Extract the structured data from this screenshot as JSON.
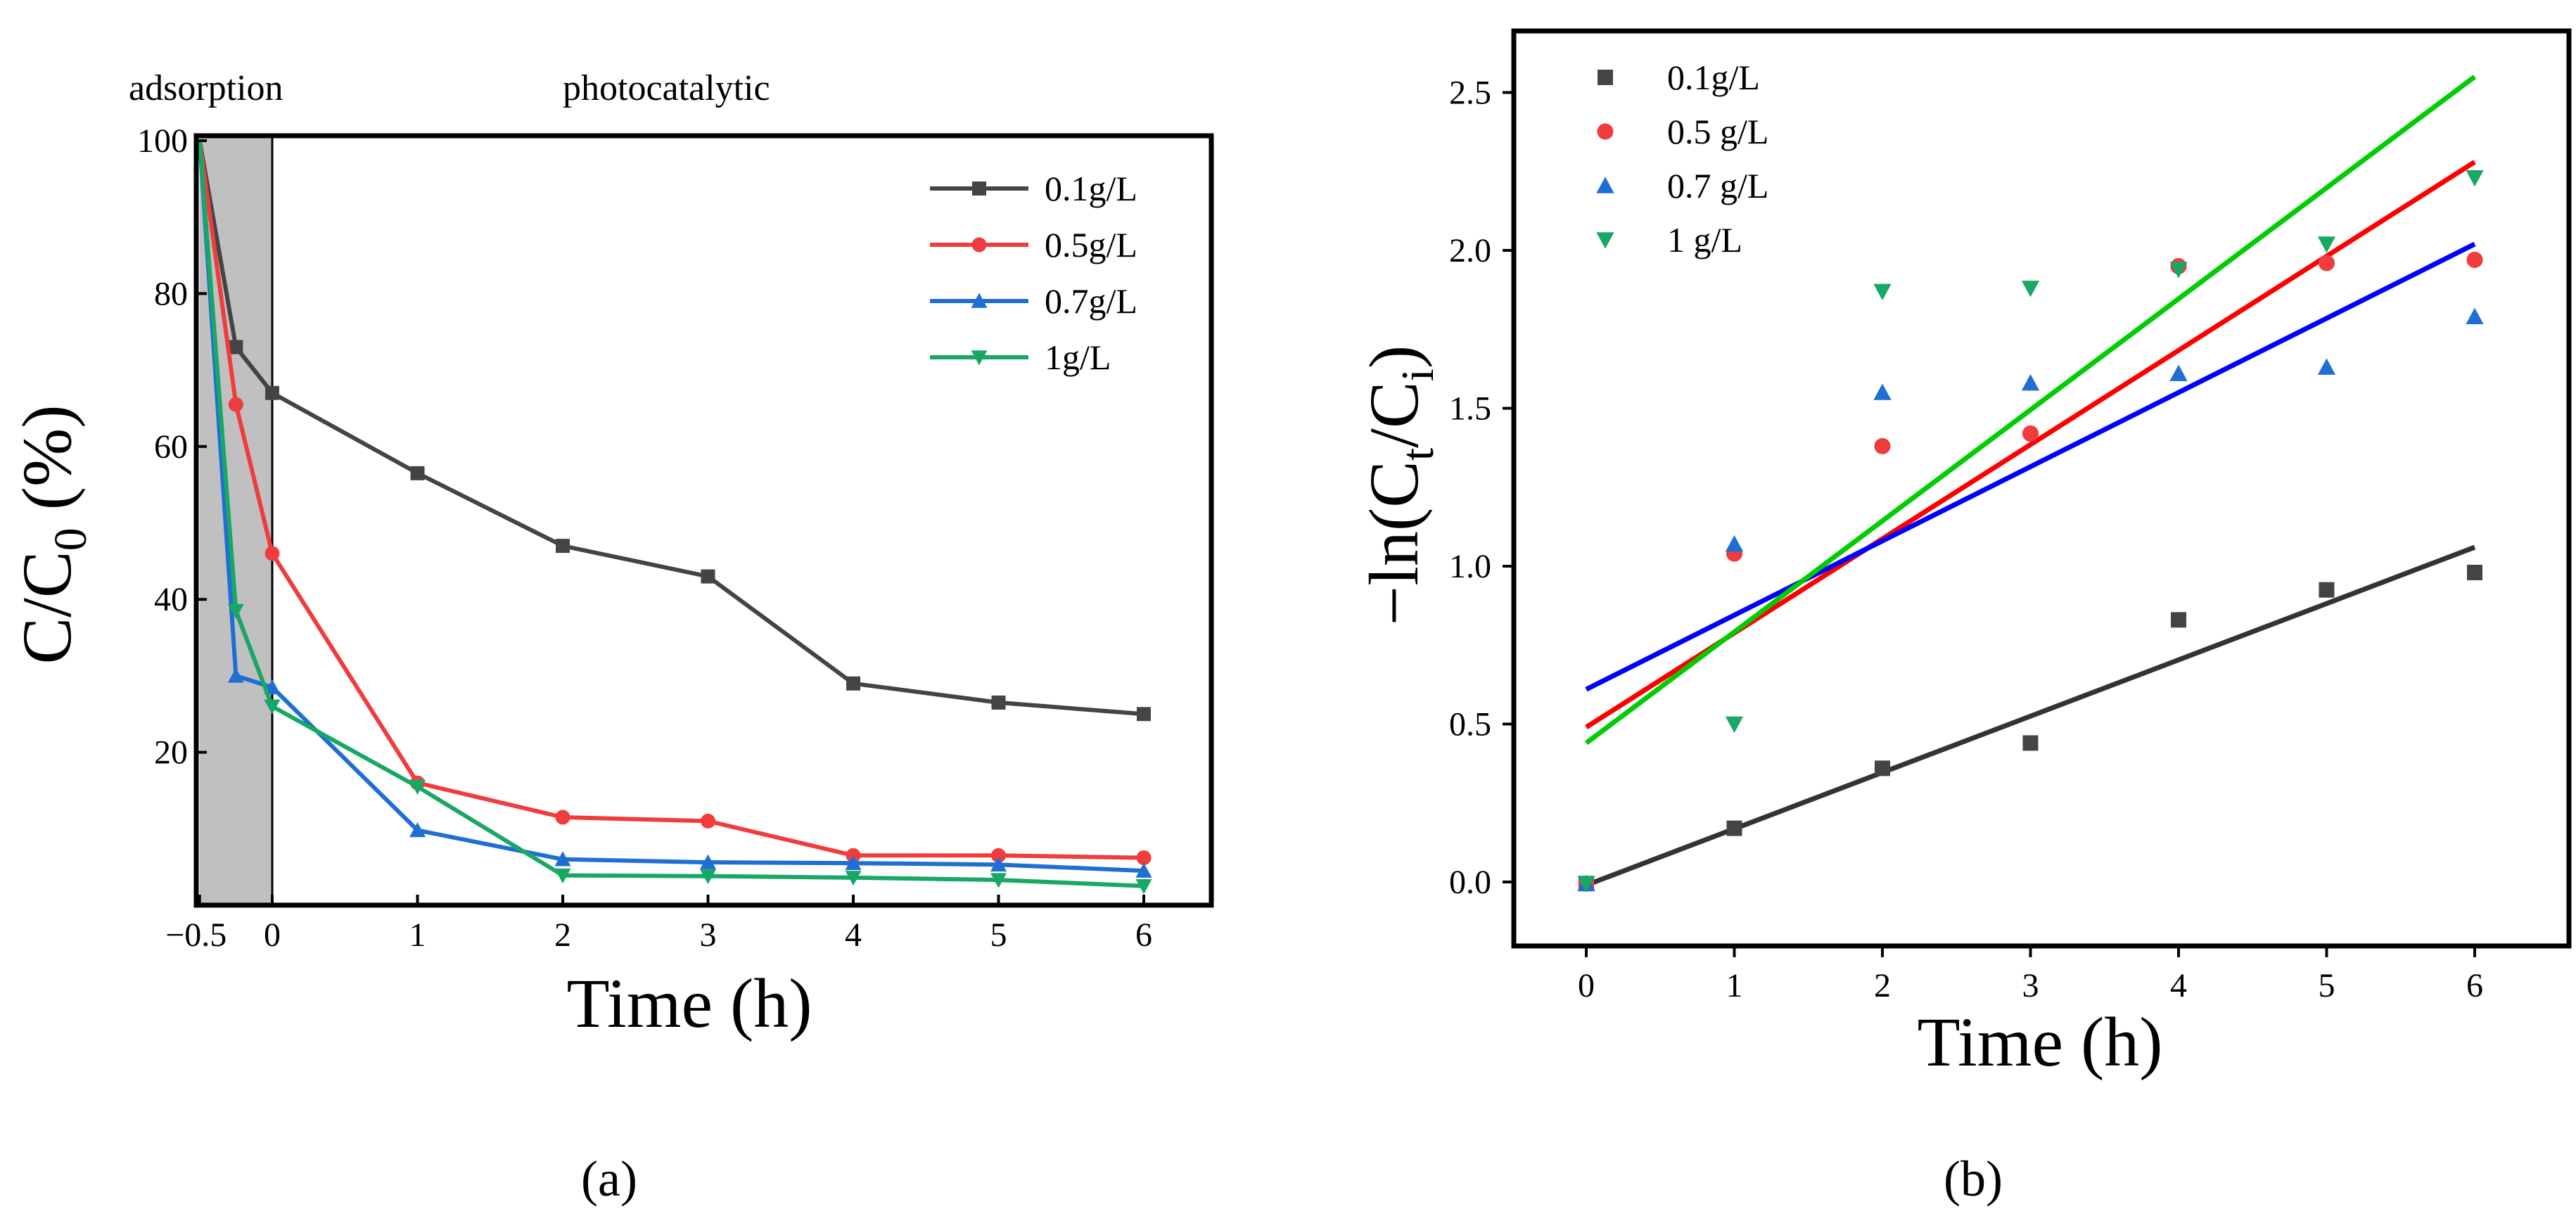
{
  "chart_data": [
    {
      "panel": "a",
      "type": "line",
      "caption": "(a)",
      "annotations": [
        "adsorption",
        "photocatalytic"
      ],
      "title": "",
      "xlabel": "Time (h)",
      "ylabel": "C/C0 (%)",
      "ylabel_main": "C/C",
      "ylabel_sub": "0",
      "ylabel_tail": " (%)",
      "xlim": [
        -0.5,
        6.5
      ],
      "ylim": [
        0,
        100
      ],
      "xticks": [
        -0.5,
        0,
        1,
        2,
        3,
        4,
        5,
        6
      ],
      "xtick_labels": [
        "−0.5",
        "0",
        "1",
        "2",
        "3",
        "4",
        "5",
        "6"
      ],
      "yticks": [
        20,
        40,
        60,
        80,
        100
      ],
      "ytick_labels": [
        "20",
        "40",
        "60",
        "80",
        "100"
      ],
      "shaded_region": {
        "x_from": -0.5,
        "x_to": 0,
        "label": "adsorption",
        "color": "#c0c0c0"
      },
      "grid": false,
      "legend_position": "top-right",
      "series": [
        {
          "name": "0.1g/L",
          "color": "#444444",
          "marker": "square",
          "x": [
            -0.5,
            -0.25,
            0,
            1,
            2,
            3,
            4,
            5,
            6
          ],
          "y": [
            100,
            73,
            67,
            56.5,
            47,
            43,
            29,
            26.5,
            25
          ]
        },
        {
          "name": "0.5g/L",
          "color": "#f03c3c",
          "marker": "circle",
          "x": [
            -0.5,
            -0.25,
            0,
            1,
            2,
            3,
            4,
            5,
            6
          ],
          "y": [
            100,
            65.5,
            46,
            16,
            11.5,
            11,
            6.5,
            6.5,
            6.2
          ]
        },
        {
          "name": "0.7g/L",
          "color": "#1f6ed4",
          "marker": "triangle-up",
          "x": [
            -0.5,
            -0.25,
            0,
            1,
            2,
            3,
            4,
            5,
            6
          ],
          "y": [
            100,
            30,
            28.5,
            9.8,
            6,
            5.6,
            5.5,
            5.3,
            4.5
          ]
        },
        {
          "name": "1g/L",
          "color": "#17a865",
          "marker": "triangle-down",
          "x": [
            -0.5,
            -0.25,
            0,
            1,
            2,
            3,
            4,
            5,
            6
          ],
          "y": [
            100,
            38.5,
            26,
            15.5,
            3.9,
            3.8,
            3.6,
            3.3,
            2.5
          ]
        }
      ]
    },
    {
      "panel": "b",
      "type": "scatter",
      "caption": "(b)",
      "title": "",
      "xlabel": "Time (h)",
      "ylabel": "−ln(Ct/Ci)",
      "ylabel_parts": [
        "−ln(C",
        "t",
        "/C",
        "i",
        ")"
      ],
      "xlim": [
        -0.5,
        6.7
      ],
      "ylim": [
        -0.2,
        2.7
      ],
      "xticks": [
        0,
        1,
        2,
        3,
        4,
        5,
        6
      ],
      "xtick_labels": [
        "0",
        "1",
        "2",
        "3",
        "4",
        "5",
        "6"
      ],
      "yticks": [
        0,
        0.5,
        1,
        1.5,
        2,
        2.5
      ],
      "ytick_labels": [
        "0.0",
        "0.5",
        "1.0",
        "1.5",
        "2.0",
        "2.5"
      ],
      "grid": false,
      "legend_position": "top-left",
      "series": [
        {
          "name": "0.1g/L",
          "color": "#444444",
          "marker": "square",
          "x": [
            0,
            1,
            2,
            3,
            4,
            5,
            6
          ],
          "y": [
            -0.005,
            0.17,
            0.36,
            0.44,
            0.83,
            0.925,
            0.98
          ],
          "fit": {
            "x": [
              0,
              6
            ],
            "y": [
              -0.01,
              1.06
            ],
            "color": "#333333"
          }
        },
        {
          "name": "0.5 g/L",
          "color": "#f03c3c",
          "marker": "circle",
          "x": [
            0,
            1,
            2,
            3,
            4,
            5,
            6
          ],
          "y": [
            -0.005,
            1.04,
            1.38,
            1.42,
            1.95,
            1.96,
            1.97
          ],
          "fit": {
            "x": [
              0,
              6
            ],
            "y": [
              0.49,
              2.28
            ],
            "color": "#ff0000"
          }
        },
        {
          "name": "0.7 g/L",
          "color": "#1f6ed4",
          "marker": "triangle-up",
          "x": [
            0,
            1,
            2,
            3,
            4,
            5,
            6
          ],
          "y": [
            -0.005,
            1.07,
            1.55,
            1.58,
            1.61,
            1.63,
            1.79
          ],
          "fit": {
            "x": [
              0,
              6
            ],
            "y": [
              0.61,
              2.02
            ],
            "color": "#0000ff"
          }
        },
        {
          "name": " 1 g/L",
          "color": "#17a865",
          "marker": "triangle-down",
          "x": [
            0,
            1,
            2,
            3,
            4,
            5,
            6
          ],
          "y": [
            -0.005,
            0.5,
            1.87,
            1.88,
            1.94,
            2.02,
            2.23
          ],
          "fit": {
            "x": [
              0,
              6
            ],
            "y": [
              0.44,
              2.55
            ],
            "color": "#00cc00"
          }
        }
      ]
    }
  ]
}
